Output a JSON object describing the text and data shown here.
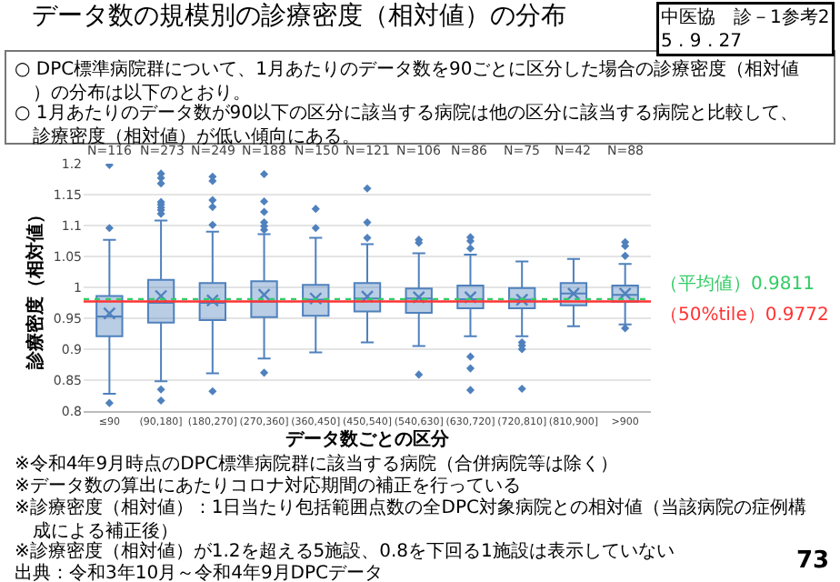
{
  "chart_data": {
    "type": "box",
    "title": "データ数の規模別の診療密度（相対値）の分布",
    "xlabel": "データ数ごとの区分",
    "ylabel": "診療密度（相対値）",
    "categories": [
      "≤90",
      "(90,180]",
      "(180,270]",
      "(270,360]",
      "(360,450]",
      "(450,540]",
      "(540,630]",
      "(630,720]",
      "(720,810]",
      "(810,900]",
      ">900"
    ],
    "series": [
      {
        "color": "#4f81bd",
        "boxes": [
          {
            "low": 0.828,
            "q1": 0.921,
            "median": 0.953,
            "q3": 0.986,
            "high": 1.077,
            "mean": 0.958,
            "outliers": [
              1.198,
              1.096,
              0.813
            ]
          },
          {
            "low": 0.848,
            "q1": 0.943,
            "median": 0.975,
            "q3": 1.012,
            "high": 1.108,
            "mean": 0.986,
            "outliers": [
              1.184,
              1.177,
              1.168,
              1.138,
              1.134,
              1.129,
              1.125,
              1.119,
              0.835,
              0.817
            ]
          },
          {
            "low": 0.861,
            "q1": 0.947,
            "median": 0.975,
            "q3": 1.007,
            "high": 1.09,
            "mean": 0.979,
            "outliers": [
              1.179,
              1.172,
              1.141,
              1.13,
              1.101,
              0.832
            ]
          },
          {
            "low": 0.885,
            "q1": 0.952,
            "median": 0.977,
            "q3": 1.01,
            "high": 1.086,
            "mean": 0.988,
            "outliers": [
              1.183,
              1.139,
              1.122,
              1.105,
              1.099,
              1.093,
              0.862
            ]
          },
          {
            "low": 0.895,
            "q1": 0.954,
            "median": 0.98,
            "q3": 1.004,
            "high": 1.08,
            "mean": 0.982,
            "outliers": [
              1.127,
              1.096
            ]
          },
          {
            "low": 0.911,
            "q1": 0.961,
            "median": 0.982,
            "q3": 1.007,
            "high": 1.07,
            "mean": 0.985,
            "outliers": [
              1.16,
              1.105,
              1.08
            ]
          },
          {
            "low": 0.905,
            "q1": 0.959,
            "median": 0.982,
            "q3": 0.998,
            "high": 1.055,
            "mean": 0.984,
            "outliers": [
              1.077,
              1.072,
              0.859
            ]
          },
          {
            "low": 0.921,
            "q1": 0.966,
            "median": 0.981,
            "q3": 1.003,
            "high": 1.053,
            "mean": 0.984,
            "outliers": [
              1.081,
              1.075,
              1.063,
              0.888,
              0.869,
              0.834
            ]
          },
          {
            "low": 0.921,
            "q1": 0.966,
            "median": 0.98,
            "q3": 0.999,
            "high": 1.042,
            "mean": 0.98,
            "outliers": [
              0.911,
              0.906,
              0.9,
              0.836
            ]
          },
          {
            "low": 0.937,
            "q1": 0.971,
            "median": 0.99,
            "q3": 1.007,
            "high": 1.046,
            "mean": 0.99
          },
          {
            "low": 0.94,
            "q1": 0.977,
            "median": 0.988,
            "q3": 1.003,
            "high": 1.038,
            "mean": 0.99,
            "outliers": [
              1.073,
              1.067,
              1.051,
              0.934
            ]
          }
        ]
      }
    ],
    "ylim": [
      0.8,
      1.2
    ],
    "yticks": [
      0.8,
      0.85,
      0.9,
      0.95,
      1,
      1.05,
      1.1,
      1.15,
      1.2
    ],
    "grid": "y",
    "ref_lines": [
      {
        "axis": "y",
        "value": 0.9811,
        "label": "（平均値）0.9811",
        "color": "#33cc66",
        "line_style": "dotted"
      },
      {
        "axis": "y",
        "value": 0.9772,
        "label": "（50%tile）0.9772",
        "color": "#ff3333",
        "line_style": "solid"
      }
    ],
    "annotations": [
      "中医協　診－1参考2\n5 . 9 . 27",
      "○ DPC標準病院群について、1月あたりのデータ数を90ごとに区分した場合の診療密度（相対値）の分布は以下のとおり。",
      "○ 1月あたりのデータ数が90以下の区分に該当する病院は他の区分に該当する病院と比較して、診療密度（相対値）が低い傾向にある。",
      "※令和4年9月時点のDPC標準病院群に該当する病院（合併病院等は除く）",
      "※データ数の算出にあたりコロナ対応期間の補正を行っている",
      "※診療密度（相対値）：1日当たり包括範囲点数の全DPC対象病院との相対値（当該病院の症例構成による補正後）",
      "※診療密度（相対値）が1.2を超える5施設、0.8を下回る1施設は表示していない",
      "出典：令和3年10月～令和4年9月DPCデータ",
      "73",
      "N=116",
      "N=273",
      "N=249",
      "N=188",
      "N=150",
      "N=121",
      "N=106",
      "N=86",
      "N=75",
      "N=42",
      "N=88"
    ]
  }
}
